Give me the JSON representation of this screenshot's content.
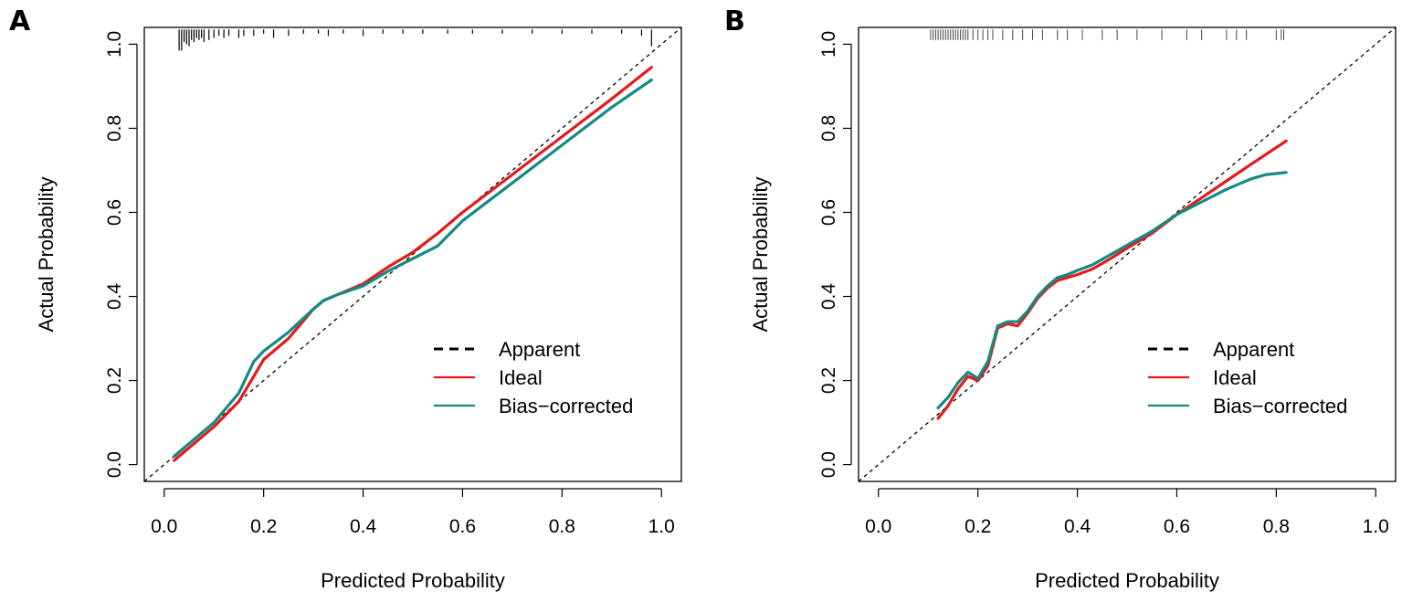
{
  "figure": {
    "panels": [
      {
        "panel_label": "A",
        "xlabel": "Predicted Probability",
        "ylabel": "Actual Probability",
        "legend": [
          {
            "label": "Apparent",
            "style": "dashed",
            "color": "#000000"
          },
          {
            "label": "Ideal",
            "style": "solid",
            "color": "#e41a1c"
          },
          {
            "label": "Bias−corrected",
            "style": "solid",
            "color": "#148a82"
          }
        ]
      },
      {
        "panel_label": "B",
        "xlabel": "Predicted Probability",
        "ylabel": "Actual Probability",
        "legend": [
          {
            "label": "Apparent",
            "style": "dashed",
            "color": "#000000"
          },
          {
            "label": "Ideal",
            "style": "solid",
            "color": "#e41a1c"
          },
          {
            "label": "Bias−corrected",
            "style": "solid",
            "color": "#148a82"
          }
        ]
      }
    ]
  },
  "chart_data": [
    {
      "type": "line",
      "panel": "A",
      "title": "",
      "xlabel": "Predicted Probability",
      "ylabel": "Actual Probability",
      "xlim": [
        -0.04,
        1.04
      ],
      "ylim": [
        -0.04,
        1.04
      ],
      "x_ticks": [
        0.0,
        0.2,
        0.4,
        0.6,
        0.8,
        1.0
      ],
      "x_tick_labels": [
        "0.0",
        "0.2",
        "0.4",
        "0.6",
        "0.8",
        "1.0"
      ],
      "y_ticks": [
        0.0,
        0.2,
        0.4,
        0.6,
        0.8,
        1.0
      ],
      "y_tick_labels": [
        "0.0",
        "0.2",
        "0.4",
        "0.6",
        "0.8",
        "1.0"
      ],
      "grid": false,
      "legend_position": "bottom-right",
      "diagonal": {
        "x": [
          -0.04,
          1.04
        ],
        "y": [
          -0.04,
          1.04
        ]
      },
      "series": [
        {
          "name": "Ideal",
          "color": "#e41a1c",
          "x": [
            0.02,
            0.06,
            0.1,
            0.15,
            0.18,
            0.2,
            0.25,
            0.3,
            0.32,
            0.35,
            0.4,
            0.45,
            0.5,
            0.55,
            0.6,
            0.7,
            0.8,
            0.9,
            0.98
          ],
          "y": [
            0.01,
            0.05,
            0.09,
            0.15,
            0.21,
            0.25,
            0.3,
            0.37,
            0.39,
            0.405,
            0.43,
            0.47,
            0.505,
            0.55,
            0.6,
            0.69,
            0.78,
            0.87,
            0.945
          ]
        },
        {
          "name": "Bias−corrected",
          "color": "#148a82",
          "x": [
            0.02,
            0.06,
            0.1,
            0.15,
            0.18,
            0.2,
            0.25,
            0.3,
            0.32,
            0.35,
            0.4,
            0.45,
            0.5,
            0.55,
            0.6,
            0.7,
            0.8,
            0.9,
            0.98
          ],
          "y": [
            0.02,
            0.06,
            0.1,
            0.17,
            0.245,
            0.27,
            0.315,
            0.37,
            0.39,
            0.405,
            0.425,
            0.46,
            0.49,
            0.52,
            0.58,
            0.67,
            0.76,
            0.85,
            0.915
          ]
        }
      ],
      "rug_top_x": [
        0.03,
        0.035,
        0.04,
        0.045,
        0.05,
        0.055,
        0.06,
        0.065,
        0.07,
        0.075,
        0.08,
        0.09,
        0.1,
        0.11,
        0.12,
        0.13,
        0.15,
        0.16,
        0.18,
        0.2,
        0.22,
        0.25,
        0.28,
        0.31,
        0.33,
        0.36,
        0.4,
        0.44,
        0.48,
        0.52,
        0.57,
        0.62,
        0.68,
        0.74,
        0.8,
        0.86,
        0.92,
        0.96,
        0.98
      ],
      "rug_top_len": [
        0.05,
        0.05,
        0.03,
        0.035,
        0.04,
        0.025,
        0.03,
        0.02,
        0.025,
        0.02,
        0.03,
        0.025,
        0.02,
        0.015,
        0.02,
        0.015,
        0.02,
        0.015,
        0.015,
        0.01,
        0.02,
        0.015,
        0.01,
        0.01,
        0.015,
        0.01,
        0.015,
        0.01,
        0.01,
        0.01,
        0.01,
        0.01,
        0.01,
        0.01,
        0.01,
        0.01,
        0.01,
        0.015,
        0.04
      ]
    },
    {
      "type": "line",
      "panel": "B",
      "title": "",
      "xlabel": "Predicted Probability",
      "ylabel": "Actual Probability",
      "xlim": [
        -0.04,
        1.04
      ],
      "ylim": [
        -0.04,
        1.04
      ],
      "x_ticks": [
        0.0,
        0.2,
        0.4,
        0.6,
        0.8,
        1.0
      ],
      "x_tick_labels": [
        "0.0",
        "0.2",
        "0.4",
        "0.6",
        "0.8",
        "1.0"
      ],
      "y_ticks": [
        0.0,
        0.2,
        0.4,
        0.6,
        0.8,
        1.0
      ],
      "y_tick_labels": [
        "0.0",
        "0.2",
        "0.4",
        "0.6",
        "0.8",
        "1.0"
      ],
      "grid": false,
      "legend_position": "bottom-right",
      "diagonal": {
        "x": [
          -0.04,
          1.04
        ],
        "y": [
          -0.04,
          1.04
        ]
      },
      "series": [
        {
          "name": "Ideal",
          "color": "#e41a1c",
          "x": [
            0.12,
            0.14,
            0.16,
            0.18,
            0.2,
            0.22,
            0.24,
            0.26,
            0.28,
            0.3,
            0.32,
            0.34,
            0.36,
            0.38,
            0.4,
            0.43,
            0.46,
            0.5,
            0.55,
            0.6,
            0.65,
            0.7,
            0.75,
            0.82
          ],
          "y": [
            0.11,
            0.14,
            0.18,
            0.21,
            0.2,
            0.235,
            0.325,
            0.335,
            0.33,
            0.36,
            0.395,
            0.42,
            0.438,
            0.445,
            0.452,
            0.465,
            0.485,
            0.515,
            0.55,
            0.595,
            0.635,
            0.675,
            0.715,
            0.77
          ]
        },
        {
          "name": "Bias−corrected",
          "color": "#148a82",
          "x": [
            0.12,
            0.14,
            0.16,
            0.18,
            0.2,
            0.22,
            0.24,
            0.26,
            0.28,
            0.3,
            0.32,
            0.34,
            0.36,
            0.38,
            0.4,
            0.43,
            0.46,
            0.5,
            0.55,
            0.6,
            0.65,
            0.7,
            0.75,
            0.78,
            0.82
          ],
          "y": [
            0.135,
            0.16,
            0.195,
            0.22,
            0.205,
            0.245,
            0.33,
            0.34,
            0.34,
            0.365,
            0.4,
            0.425,
            0.445,
            0.452,
            0.462,
            0.475,
            0.495,
            0.522,
            0.555,
            0.595,
            0.625,
            0.655,
            0.68,
            0.69,
            0.695
          ]
        }
      ],
      "rug_top_x": [
        0.105,
        0.11,
        0.115,
        0.12,
        0.125,
        0.13,
        0.135,
        0.14,
        0.145,
        0.15,
        0.155,
        0.16,
        0.165,
        0.17,
        0.175,
        0.18,
        0.19,
        0.2,
        0.21,
        0.22,
        0.23,
        0.25,
        0.27,
        0.29,
        0.31,
        0.33,
        0.36,
        0.38,
        0.41,
        0.45,
        0.48,
        0.52,
        0.57,
        0.62,
        0.65,
        0.7,
        0.72,
        0.74,
        0.8,
        0.81,
        0.815
      ],
      "rug_top_len": [
        0.025,
        0.025,
        0.025,
        0.025,
        0.025,
        0.025,
        0.025,
        0.025,
        0.025,
        0.025,
        0.025,
        0.025,
        0.025,
        0.025,
        0.025,
        0.025,
        0.025,
        0.025,
        0.025,
        0.025,
        0.025,
        0.025,
        0.025,
        0.025,
        0.025,
        0.025,
        0.025,
        0.025,
        0.025,
        0.025,
        0.025,
        0.025,
        0.025,
        0.025,
        0.025,
        0.025,
        0.025,
        0.025,
        0.025,
        0.025,
        0.025
      ]
    }
  ]
}
